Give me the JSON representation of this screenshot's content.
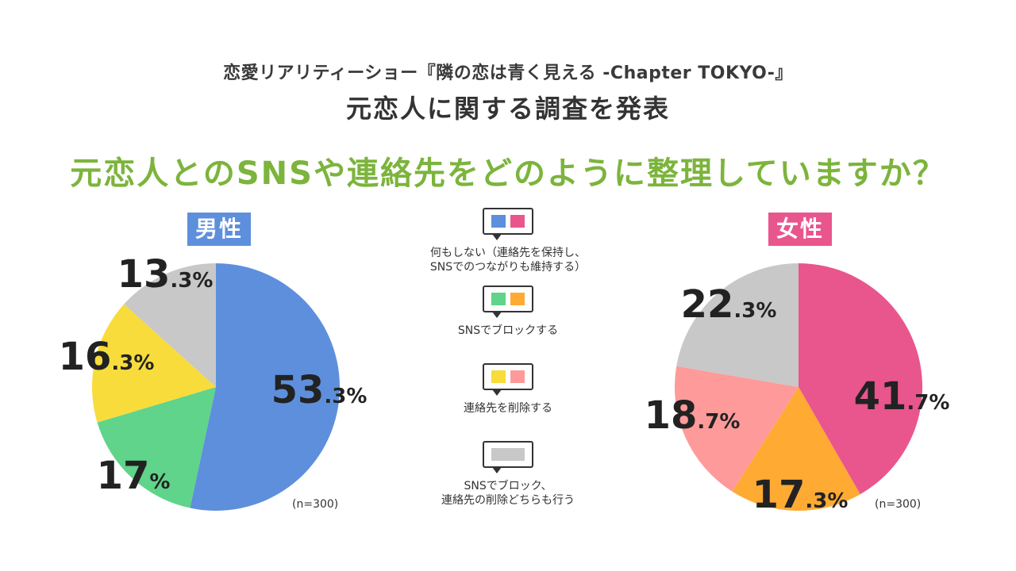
{
  "header": {
    "subtitle": "恋愛リアリティーショー『隣の恋は青く見える -Chapter TOKYO-』",
    "title": "元恋人に関する調査を発表",
    "question": "元恋人とのSNSや連絡先をどのように整理していますか？"
  },
  "colors": {
    "male_keep": "#5d8fdc",
    "male_block": "#5fd48a",
    "male_delete": "#f8dc3c",
    "both": "#c8c8c8",
    "female_keep": "#e9558d",
    "female_block": "#ffaa33",
    "female_delete": "#ff9a9a",
    "question": "#7cb43c"
  },
  "legend": [
    {
      "label": "何もしない（連絡先を保持し、\nSNSでのつながりも維持する）",
      "colors": [
        "#5d8fdc",
        "#e9558d"
      ]
    },
    {
      "label": "SNSでブロックする",
      "colors": [
        "#5fd48a",
        "#ffaa33"
      ]
    },
    {
      "label": "連絡先を削除する",
      "colors": [
        "#f8dc3c",
        "#ff9a9a"
      ]
    },
    {
      "label": "SNSでブロック、\n連絡先の削除どちらも行う",
      "colors": [
        "#c8c8c8"
      ]
    }
  ],
  "chart_data": [
    {
      "type": "pie",
      "title": "男性",
      "n_label": "(n=300)",
      "slices": [
        {
          "value": 53.3,
          "int": "53",
          "dec": ".3%",
          "color": "#5d8fdc"
        },
        {
          "value": 17.0,
          "int": "17",
          "dec": "%",
          "color": "#5fd48a"
        },
        {
          "value": 16.3,
          "int": "16",
          "dec": ".3%",
          "color": "#f8dc3c"
        },
        {
          "value": 13.3,
          "int": "13",
          "dec": ".3%",
          "color": "#c8c8c8"
        }
      ]
    },
    {
      "type": "pie",
      "title": "女性",
      "n_label": "(n=300)",
      "slices": [
        {
          "value": 41.7,
          "int": "41",
          "dec": ".7%",
          "color": "#e9558d"
        },
        {
          "value": 17.3,
          "int": "17",
          "dec": ".3%",
          "color": "#ffaa33"
        },
        {
          "value": 18.7,
          "int": "18",
          "dec": ".7%",
          "color": "#ff9a9a"
        },
        {
          "value": 22.3,
          "int": "22",
          "dec": ".3%",
          "color": "#c8c8c8"
        }
      ]
    }
  ]
}
